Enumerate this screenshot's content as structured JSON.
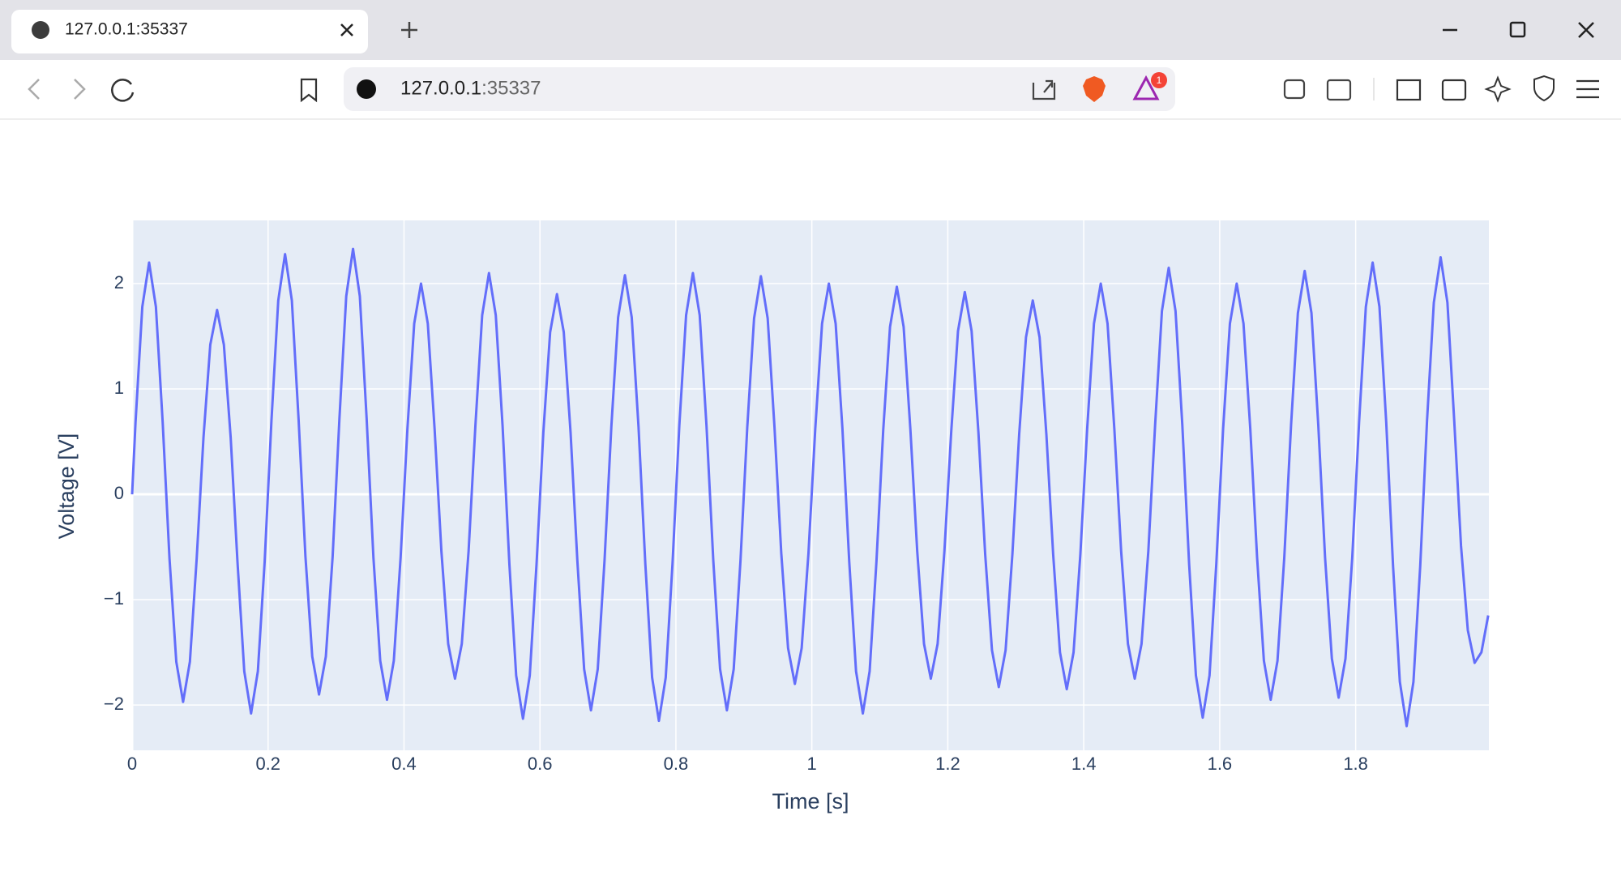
{
  "browser": {
    "tab_title": "127.0.0.1:35337",
    "url_host": "127.0.0.1",
    "url_port": ":35337",
    "badge": "1"
  },
  "chart_data": {
    "type": "line",
    "xlabel": "Time [s]",
    "ylabel": "Voltage [V]",
    "color": "#636efa",
    "grid": true,
    "xlim": [
      0,
      1.996
    ],
    "ylim": [
      -2.43,
      2.6
    ],
    "xticks": [
      0,
      0.2,
      0.4,
      0.6,
      0.8,
      1,
      1.2,
      1.4,
      1.6,
      1.8
    ],
    "yticks": [
      {
        "value": -2,
        "label": "−2"
      },
      {
        "value": -1,
        "label": "−1"
      },
      0,
      1,
      2
    ],
    "x": [
      0,
      0.005,
      0.015,
      0.025,
      0.035,
      0.045,
      0.055,
      0.065,
      0.075,
      0.085,
      0.095,
      0.105,
      0.115,
      0.125,
      0.135,
      0.145,
      0.155,
      0.165,
      0.175,
      0.185,
      0.195,
      0.205,
      0.215,
      0.225,
      0.235,
      0.245,
      0.255,
      0.265,
      0.275,
      0.285,
      0.295,
      0.305,
      0.315,
      0.325,
      0.335,
      0.345,
      0.355,
      0.365,
      0.375,
      0.385,
      0.395,
      0.405,
      0.415,
      0.425,
      0.435,
      0.445,
      0.455,
      0.465,
      0.475,
      0.485,
      0.495,
      0.505,
      0.515,
      0.525,
      0.535,
      0.545,
      0.555,
      0.565,
      0.575,
      0.585,
      0.595,
      0.605,
      0.615,
      0.625,
      0.635,
      0.645,
      0.655,
      0.665,
      0.675,
      0.685,
      0.695,
      0.705,
      0.715,
      0.725,
      0.735,
      0.745,
      0.755,
      0.765,
      0.775,
      0.785,
      0.795,
      0.805,
      0.815,
      0.825,
      0.835,
      0.845,
      0.855,
      0.865,
      0.875,
      0.885,
      0.895,
      0.905,
      0.915,
      0.925,
      0.935,
      0.945,
      0.955,
      0.965,
      0.975,
      0.985,
      0.995,
      1.005,
      1.015,
      1.025,
      1.035,
      1.045,
      1.055,
      1.065,
      1.075,
      1.085,
      1.095,
      1.105,
      1.115,
      1.125,
      1.135,
      1.145,
      1.155,
      1.165,
      1.175,
      1.185,
      1.195,
      1.205,
      1.215,
      1.225,
      1.235,
      1.245,
      1.255,
      1.265,
      1.275,
      1.285,
      1.295,
      1.305,
      1.315,
      1.325,
      1.335,
      1.345,
      1.355,
      1.365,
      1.375,
      1.385,
      1.395,
      1.405,
      1.415,
      1.425,
      1.435,
      1.445,
      1.455,
      1.465,
      1.475,
      1.485,
      1.495,
      1.505,
      1.515,
      1.525,
      1.535,
      1.545,
      1.555,
      1.565,
      1.575,
      1.585,
      1.595,
      1.605,
      1.615,
      1.625,
      1.635,
      1.645,
      1.655,
      1.665,
      1.675,
      1.685,
      1.695,
      1.705,
      1.715,
      1.725,
      1.735,
      1.745,
      1.755,
      1.765,
      1.775,
      1.785,
      1.795,
      1.805,
      1.815,
      1.825,
      1.835,
      1.845,
      1.855,
      1.865,
      1.875,
      1.885,
      1.895,
      1.905,
      1.915,
      1.925,
      1.935,
      1.945,
      1.955,
      1.965,
      1.975,
      1.985,
      1.995
    ],
    "values": [
      0,
      0.68,
      1.78,
      2.2,
      1.78,
      0.68,
      -0.61,
      -1.59,
      -1.97,
      -1.59,
      -0.61,
      0.54,
      1.42,
      1.75,
      1.42,
      0.54,
      -0.64,
      -1.68,
      -2.08,
      -1.68,
      -0.64,
      0.7,
      1.84,
      2.28,
      1.84,
      0.7,
      -0.59,
      -1.54,
      -1.9,
      -1.54,
      -0.59,
      0.72,
      1.88,
      2.33,
      1.88,
      0.72,
      -0.6,
      -1.58,
      -1.95,
      -1.58,
      -0.6,
      0.62,
      1.62,
      2.0,
      1.62,
      0.62,
      -0.54,
      -1.42,
      -1.75,
      -1.42,
      -0.54,
      0.65,
      1.7,
      2.1,
      1.7,
      0.65,
      -0.66,
      -1.72,
      -2.13,
      -1.72,
      -0.66,
      0.59,
      1.54,
      1.9,
      1.54,
      0.59,
      -0.63,
      -1.66,
      -2.05,
      -1.66,
      -0.63,
      0.64,
      1.68,
      2.08,
      1.68,
      0.64,
      -0.66,
      -1.74,
      -2.15,
      -1.74,
      -0.66,
      0.65,
      1.7,
      2.1,
      1.7,
      0.65,
      -0.63,
      -1.66,
      -2.05,
      -1.66,
      -0.63,
      0.64,
      1.67,
      2.07,
      1.67,
      0.64,
      -0.56,
      -1.46,
      -1.8,
      -1.46,
      -0.56,
      0.62,
      1.62,
      2.0,
      1.62,
      0.62,
      -0.64,
      -1.68,
      -2.08,
      -1.68,
      -0.64,
      0.61,
      1.59,
      1.97,
      1.59,
      0.61,
      -0.54,
      -1.42,
      -1.75,
      -1.42,
      -0.54,
      0.59,
      1.55,
      1.92,
      1.55,
      0.59,
      -0.57,
      -1.48,
      -1.83,
      -1.48,
      -0.57,
      0.57,
      1.49,
      1.84,
      1.49,
      0.57,
      -0.57,
      -1.5,
      -1.85,
      -1.5,
      -0.57,
      0.62,
      1.62,
      2.0,
      1.62,
      0.62,
      -0.54,
      -1.42,
      -1.75,
      -1.42,
      -0.54,
      0.66,
      1.74,
      2.15,
      1.74,
      0.66,
      -0.66,
      -1.72,
      -2.12,
      -1.72,
      -0.66,
      0.62,
      1.62,
      2.0,
      1.62,
      0.62,
      -0.6,
      -1.58,
      -1.95,
      -1.58,
      -0.6,
      0.66,
      1.72,
      2.12,
      1.72,
      0.66,
      -0.6,
      -1.56,
      -1.93,
      -1.56,
      -0.6,
      0.68,
      1.78,
      2.2,
      1.78,
      0.68,
      -0.68,
      -1.78,
      -2.2,
      -1.78,
      -0.68,
      0.7,
      1.82,
      2.25,
      1.82,
      0.7,
      -0.49,
      -1.29,
      -1.6,
      -1.5,
      -1.15
    ]
  }
}
